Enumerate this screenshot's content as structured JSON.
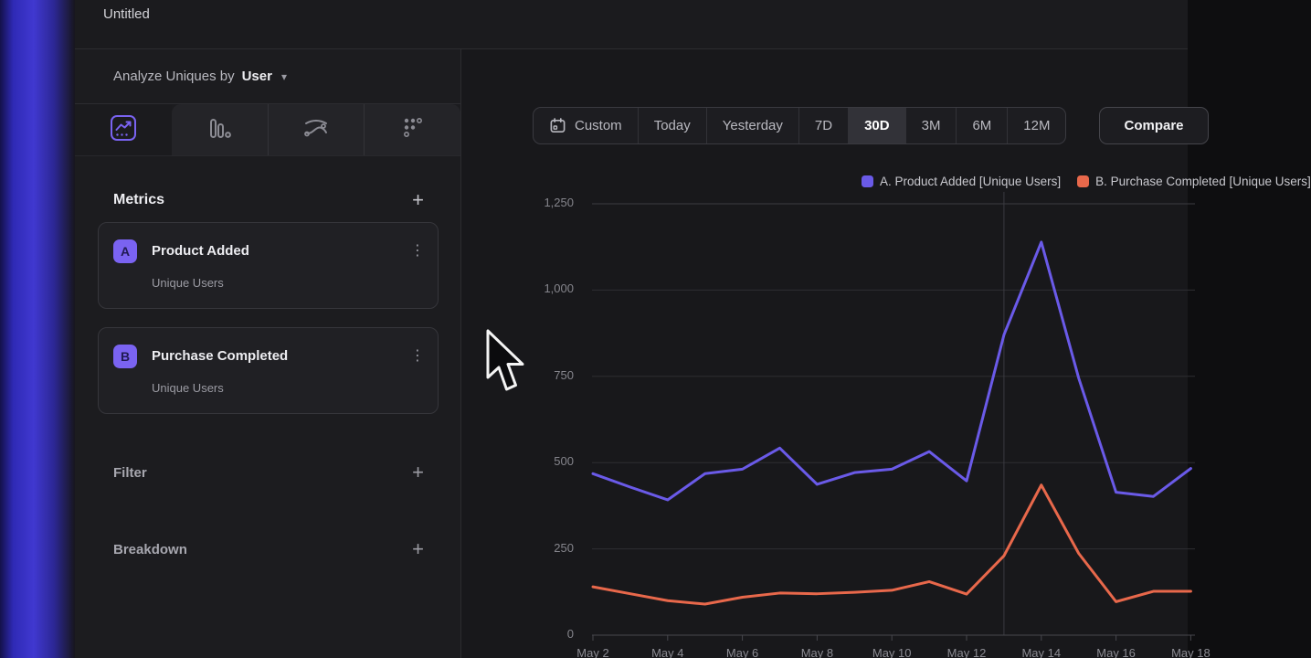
{
  "topbar": {
    "title": "Untitled"
  },
  "sidebar": {
    "analyze_prefix": "Analyze Uniques by",
    "analyze_value": "User",
    "chart_type_tabs": [
      "line-chart-icon",
      "bar-chart-icon",
      "flow-icon",
      "dot-grid-icon"
    ],
    "metrics": {
      "header": "Metrics",
      "add_icon": "plus-icon",
      "cards": [
        {
          "badge": "A",
          "title": "Product Added",
          "subtitle": "Unique Users",
          "menu_icon": "kebab-icon"
        },
        {
          "badge": "B",
          "title": "Purchase Completed",
          "subtitle": "Unique Users",
          "menu_icon": "kebab-icon"
        }
      ]
    },
    "filter": {
      "label": "Filter",
      "add_icon": "plus-icon"
    },
    "breakdown": {
      "label": "Breakdown",
      "add_icon": "plus-icon"
    }
  },
  "timerange": {
    "options": [
      "Custom",
      "Today",
      "Yesterday",
      "7D",
      "30D",
      "3M",
      "6M",
      "12M"
    ],
    "selected": "30D",
    "compare_label": "Compare"
  },
  "legend": {
    "items": [
      {
        "label": "A. Product Added [Unique Users]",
        "color": "#6a5ae8"
      },
      {
        "label": "B. Purchase Completed [Unique Users]",
        "color": "#e8684b"
      }
    ]
  },
  "chart_data": {
    "type": "line",
    "x": [
      "May 2",
      "May 3",
      "May 4",
      "May 5",
      "May 6",
      "May 7",
      "May 8",
      "May 9",
      "May 10",
      "May 11",
      "May 12",
      "May 13",
      "May 14",
      "May 15",
      "May 16",
      "May 17",
      "May 18"
    ],
    "series": [
      {
        "name": "A. Product Added [Unique Users]",
        "color": "#6a5ae8",
        "values": [
          468,
          429,
          392,
          468,
          481,
          542,
          437,
          471,
          481,
          532,
          447,
          870,
          1139,
          745,
          414,
          402,
          483
        ]
      },
      {
        "name": "B. Purchase Completed [Unique Users]",
        "color": "#e8684b",
        "values": [
          140,
          120,
          100,
          90,
          110,
          122,
          120,
          124,
          130,
          155,
          119,
          230,
          435,
          237,
          97,
          127,
          127
        ]
      }
    ],
    "ylim": [
      0,
      1250
    ],
    "yticks": [
      0,
      250,
      500,
      750,
      1000,
      1250
    ],
    "y_tick_labels": [
      "0",
      "250",
      "500",
      "750",
      "1,000",
      "1,250"
    ],
    "x_tick_every": 2,
    "vertical_marker_x": "May 13",
    "grid": true,
    "legend_position": "top-right",
    "title": "",
    "xlabel": "",
    "ylabel": ""
  },
  "colors": {
    "accent_purple": "#7a63f1",
    "series_a": "#6a5ae8",
    "series_b": "#e8684b",
    "panel_bg": "#1c1c1f",
    "chart_bg": "#18181b",
    "grid_line": "#2e2e33",
    "marker_line": "#3a3a40"
  }
}
